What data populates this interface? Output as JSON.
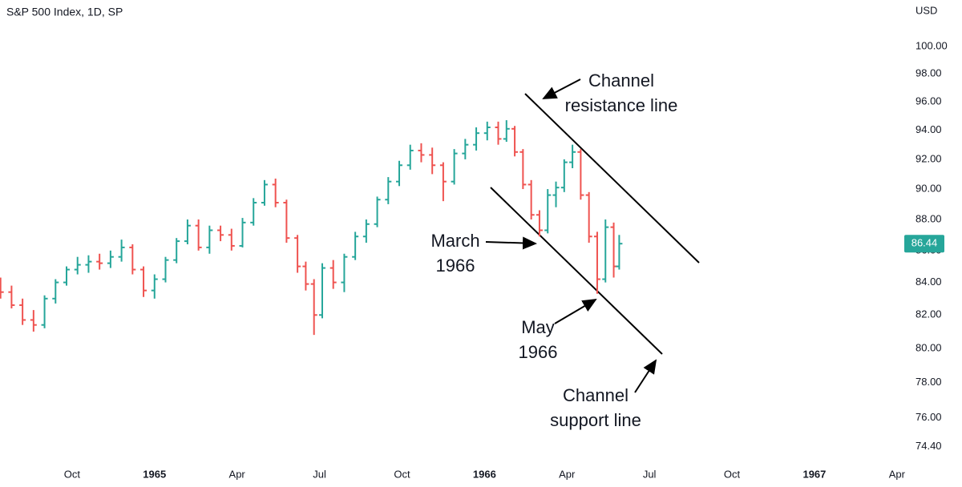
{
  "chart_data": {
    "type": "ohlc",
    "title": "S&P 500 Index, 1D, SP",
    "currency": "USD",
    "log_scale": true,
    "grid": false,
    "up_color": "#26a69a",
    "down_color": "#ef5350",
    "x": [
      -2.6,
      -2.2,
      -1.8,
      -1.4,
      -1.0,
      -0.6,
      -0.2,
      0.2,
      0.6,
      1.0,
      1.4,
      1.8,
      2.2,
      2.6,
      3.0,
      3.4,
      3.8,
      4.2,
      4.6,
      5.0,
      5.4,
      5.8,
      6.2,
      6.6,
      7.0,
      7.4,
      7.8,
      8.2,
      8.5,
      8.8,
      9.1,
      9.5,
      9.9,
      10.3,
      10.7,
      11.1,
      11.5,
      11.9,
      12.3,
      12.7,
      13.1,
      13.5,
      13.9,
      14.3,
      14.7,
      15.1,
      15.5,
      15.8,
      16.1,
      16.4,
      16.7,
      17.0,
      17.3,
      17.6,
      17.9,
      18.2,
      18.5,
      18.8,
      19.1,
      19.4,
      19.7,
      19.9
    ],
    "open": [
      84.0,
      83.4,
      82.6,
      81.7,
      81.4,
      83.0,
      84.0,
      84.8,
      85.1,
      85.3,
      85.2,
      85.6,
      86.2,
      84.8,
      83.5,
      84.2,
      85.4,
      86.6,
      87.6,
      86.2,
      87.3,
      87.0,
      86.3,
      87.8,
      89.1,
      90.3,
      89.1,
      86.8,
      85.0,
      83.9,
      82.0,
      84.9,
      84.0,
      85.6,
      86.9,
      87.7,
      89.3,
      90.5,
      91.6,
      92.6,
      92.3,
      91.6,
      90.5,
      92.4,
      93.0,
      93.8,
      94.2,
      93.4,
      94.1,
      92.5,
      90.3,
      88.3,
      87.3,
      89.6,
      90.1,
      91.8,
      92.5,
      89.6,
      86.9,
      84.2,
      87.5,
      85.0
    ],
    "high": [
      84.3,
      83.8,
      83.0,
      82.3,
      83.2,
      84.2,
      85.0,
      85.6,
      85.7,
      85.8,
      86.0,
      86.7,
      86.4,
      85.0,
      84.5,
      85.6,
      86.8,
      88.0,
      88.0,
      87.6,
      87.6,
      87.4,
      88.1,
      89.4,
      90.6,
      90.7,
      89.3,
      87.0,
      85.3,
      84.2,
      85.2,
      85.4,
      85.8,
      87.2,
      88.0,
      89.5,
      90.8,
      91.9,
      93.0,
      93.1,
      92.8,
      91.8,
      92.7,
      93.4,
      94.2,
      94.6,
      94.6,
      94.7,
      94.3,
      92.7,
      90.6,
      88.6,
      90.0,
      90.5,
      92.0,
      93.0,
      92.7,
      89.8,
      87.2,
      88.0,
      87.8,
      87.0
    ],
    "low": [
      83.0,
      82.4,
      81.4,
      81.0,
      81.2,
      82.7,
      83.8,
      84.5,
      84.6,
      84.8,
      84.9,
      85.3,
      84.5,
      83.1,
      83.0,
      84.0,
      85.2,
      86.4,
      86.0,
      85.8,
      86.6,
      86.0,
      86.2,
      87.6,
      88.9,
      88.8,
      86.5,
      84.6,
      83.5,
      80.8,
      81.8,
      83.6,
      83.4,
      85.4,
      86.5,
      87.5,
      89.0,
      90.2,
      91.3,
      91.8,
      91.0,
      89.2,
      90.3,
      92.0,
      92.6,
      93.3,
      93.0,
      93.2,
      92.2,
      90.0,
      88.0,
      86.9,
      87.1,
      88.8,
      89.8,
      91.4,
      89.3,
      86.5,
      83.3,
      84.0,
      84.3,
      84.8
    ],
    "close": [
      83.4,
      82.6,
      81.7,
      81.4,
      83.0,
      84.0,
      84.8,
      85.1,
      85.3,
      85.2,
      85.6,
      86.2,
      84.8,
      83.5,
      84.2,
      85.4,
      86.6,
      87.6,
      86.2,
      87.3,
      87.0,
      86.3,
      87.8,
      89.1,
      90.3,
      89.1,
      86.8,
      85.0,
      83.9,
      82.0,
      84.9,
      84.0,
      85.6,
      86.9,
      87.7,
      89.3,
      90.5,
      91.6,
      92.6,
      92.3,
      91.6,
      90.5,
      92.4,
      93.0,
      93.8,
      94.2,
      93.4,
      94.1,
      92.5,
      90.3,
      88.3,
      87.3,
      89.6,
      90.1,
      91.8,
      92.5,
      89.6,
      86.9,
      84.2,
      87.5,
      85.0,
      86.44
    ],
    "xlim": [
      -2.62,
      30.18
    ],
    "xticks": [
      {
        "value": 0,
        "label": "Oct"
      },
      {
        "value": 3,
        "label": "1965"
      },
      {
        "value": 6,
        "label": "Apr"
      },
      {
        "value": 9,
        "label": "Jul"
      },
      {
        "value": 12,
        "label": "Oct"
      },
      {
        "value": 15,
        "label": "1966"
      },
      {
        "value": 18,
        "label": "Apr"
      },
      {
        "value": 21,
        "label": "Jul"
      },
      {
        "value": 24,
        "label": "Oct"
      },
      {
        "value": 27,
        "label": "1967"
      },
      {
        "value": 30,
        "label": "Apr"
      }
    ],
    "ylim": [
      73.2,
      103.5
    ],
    "yticks": [
      {
        "value": 74.4,
        "label": "74.40"
      },
      {
        "value": 76,
        "label": "76.00"
      },
      {
        "value": 78,
        "label": "78.00"
      },
      {
        "value": 80,
        "label": "80.00"
      },
      {
        "value": 82,
        "label": "82.00"
      },
      {
        "value": 84,
        "label": "84.00"
      },
      {
        "value": 86,
        "label": "86.00"
      },
      {
        "value": 88,
        "label": "88.00"
      },
      {
        "value": 90,
        "label": "90.00"
      },
      {
        "value": 92,
        "label": "92.00"
      },
      {
        "value": 94,
        "label": "94.00"
      },
      {
        "value": 96,
        "label": "96.00"
      },
      {
        "value": 98,
        "label": "98.00"
      },
      {
        "value": 100,
        "label": "100.00"
      }
    ],
    "annotations": [
      [
        "Channel",
        "resistance line"
      ],
      [
        "March",
        "1966"
      ],
      [
        "May",
        "1966"
      ],
      [
        "Channel",
        "support line"
      ]
    ]
  }
}
